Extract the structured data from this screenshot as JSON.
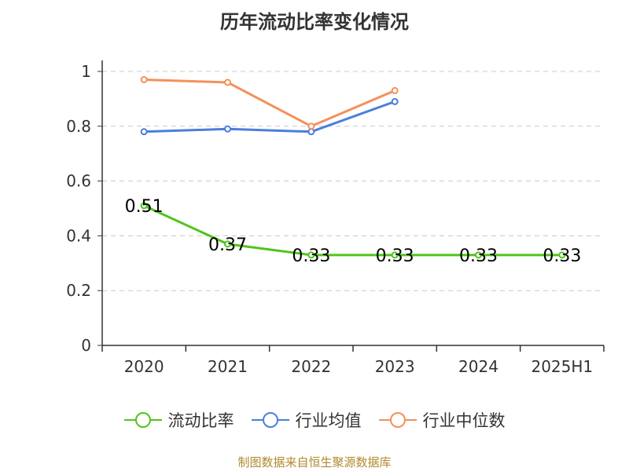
{
  "chart_data": {
    "type": "line",
    "title": "历年流动比率变化情况",
    "categories": [
      "2020",
      "2021",
      "2022",
      "2023",
      "2024",
      "2025H1"
    ],
    "ylim": [
      0,
      1
    ],
    "yticks": [
      "0",
      "0.2",
      "0.4",
      "0.6",
      "0.8",
      "1"
    ],
    "ytick_values": [
      0,
      0.2,
      0.4,
      0.6,
      0.8,
      1
    ],
    "grid": true,
    "legend_position": "bottom",
    "series": [
      {
        "name": "流动比率",
        "color": "#52c41a",
        "values": [
          0.51,
          0.37,
          0.33,
          0.33,
          0.33,
          0.33
        ],
        "labels": [
          "0.51",
          "0.37",
          "0.33",
          "0.33",
          "0.33",
          "0.33"
        ]
      },
      {
        "name": "行业均值",
        "color": "#4a7fdb",
        "values": [
          0.78,
          0.79,
          0.78,
          0.89,
          null,
          null
        ]
      },
      {
        "name": "行业中位数",
        "color": "#f5905a",
        "values": [
          0.97,
          0.96,
          0.8,
          0.93,
          null,
          null
        ]
      }
    ]
  },
  "footer": {
    "source": "制图数据来自恒生聚源数据库"
  }
}
